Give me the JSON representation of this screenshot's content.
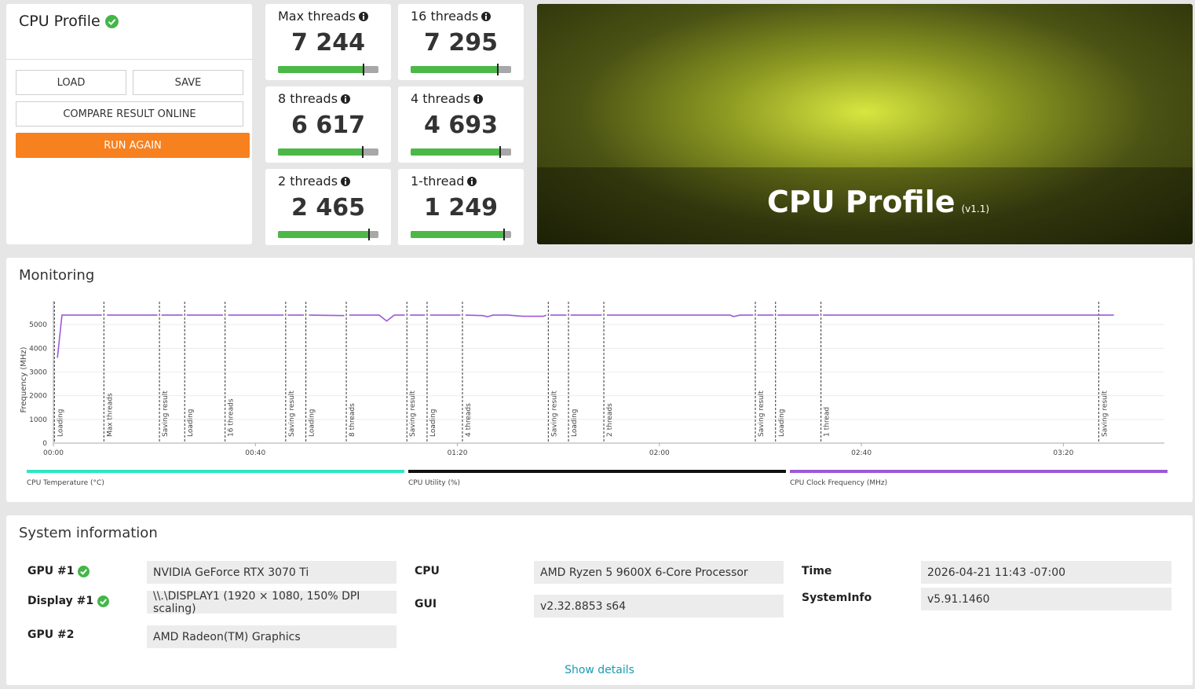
{
  "header": {
    "title": "CPU Profile",
    "buttons": [
      "LOAD",
      "SAVE",
      "COMPARE RESULT ONLINE",
      "RUN AGAIN"
    ]
  },
  "scores": [
    {
      "label": "Max threads",
      "score": "7 244"
    },
    {
      "label": "16 threads",
      "score": "7 295"
    },
    {
      "label": "8 threads",
      "score": "6 617"
    },
    {
      "label": "4 threads",
      "score": "4 693"
    },
    {
      "label": "2 threads",
      "score": "2 465"
    },
    {
      "label": "1-thread",
      "score": "1 249"
    }
  ],
  "banner": {
    "title": "CPU Profile",
    "version": "(v1.1)"
  },
  "monitoring": {
    "title": "Monitoring",
    "chart_data": {
      "type": "line",
      "ylabel": "Frequency (MHz)",
      "xlim": [
        0,
        220
      ],
      "xticks": [
        {
          "value": 0,
          "label": "00:00"
        },
        {
          "value": 40,
          "label": "00:40"
        },
        {
          "value": 80,
          "label": "01:20"
        },
        {
          "value": 120,
          "label": "02:00"
        },
        {
          "value": 160,
          "label": "02:40"
        },
        {
          "value": 200,
          "label": "03:20"
        }
      ],
      "ylim": [
        0,
        6000
      ],
      "yticks": [
        0,
        1000,
        2000,
        3000,
        4000,
        5000
      ],
      "grid": true,
      "x": [
        0.8,
        1.7,
        9.6,
        10.1,
        10.6,
        20.6,
        21,
        21.4,
        25.6,
        26,
        26.4,
        33.6,
        34.1,
        34.6,
        45.6,
        46,
        46.4,
        49.6,
        50.1,
        50.6,
        57.6,
        58.1,
        58.6,
        64.5,
        66,
        67.5,
        69.6,
        70.1,
        70.6,
        73.6,
        74.1,
        74.6,
        80.6,
        81.1,
        81.6,
        85,
        86,
        87,
        90,
        93,
        97,
        97.6,
        98,
        98.4,
        101.6,
        102,
        102.4,
        108.6,
        109.1,
        109.6,
        134,
        134.7,
        136,
        138.6,
        139,
        139.4,
        142.6,
        143,
        143.4,
        151.6,
        152,
        152.4,
        210
      ],
      "series": [
        {
          "color": "#9b59d6",
          "values": [
            3600,
            5400,
            5400,
            null,
            5400,
            5400,
            null,
            5400,
            5400,
            null,
            5400,
            5400,
            null,
            5400,
            5400,
            null,
            5400,
            5400,
            null,
            5400,
            5380,
            null,
            5400,
            5400,
            5150,
            5400,
            5400,
            null,
            5400,
            5400,
            null,
            5400,
            5400,
            null,
            5400,
            5380,
            5330,
            5400,
            5400,
            5350,
            5350,
            5400,
            null,
            5400,
            5400,
            null,
            5400,
            5400,
            null,
            5400,
            5400,
            5340,
            5400,
            5400,
            null,
            5400,
            5400,
            null,
            5400,
            5400,
            null,
            5400,
            5400
          ]
        }
      ],
      "markers": [
        {
          "x": 0.2,
          "label": "Loading"
        },
        {
          "x": 10,
          "label": "Max threads"
        },
        {
          "x": 21,
          "label": "Saving result"
        },
        {
          "x": 26,
          "label": "Loading"
        },
        {
          "x": 34,
          "label": "16 threads"
        },
        {
          "x": 46,
          "label": "Saving result"
        },
        {
          "x": 50,
          "label": "Loading"
        },
        {
          "x": 58,
          "label": "8 threads"
        },
        {
          "x": 70,
          "label": "Saving result"
        },
        {
          "x": 74,
          "label": "Loading"
        },
        {
          "x": 81,
          "label": "4 threads"
        },
        {
          "x": 98,
          "label": "Saving result"
        },
        {
          "x": 102,
          "label": "Loading"
        },
        {
          "x": 109,
          "label": "2 threads"
        },
        {
          "x": 139,
          "label": "Saving result"
        },
        {
          "x": 143,
          "label": "Loading"
        },
        {
          "x": 152,
          "label": "1 thread"
        },
        {
          "x": 207,
          "label": "Saving result"
        }
      ],
      "legend": [
        {
          "name": "CPU Temperature (°C)",
          "color": "#2de6c2"
        },
        {
          "name": "CPU Utility (%)",
          "color": "#111111"
        },
        {
          "name": "CPU Clock Frequency (MHz)",
          "color": "#9b59d6"
        }
      ]
    }
  },
  "system_information": {
    "title": "System information",
    "items": [
      {
        "label": "GPU #1",
        "value": "NVIDIA GeForce RTX 3070 Ti",
        "verified": true
      },
      {
        "label": "Display #1",
        "value": "\\\\.\\DISPLAY1 (1920 × 1080, 150% DPI scaling)",
        "verified": true
      },
      {
        "label": "GPU #2",
        "value": "AMD Radeon(TM) Graphics",
        "verified": false
      },
      {
        "label": "CPU",
        "value": "AMD Ryzen 5 9600X 6-Core Processor",
        "verified": false
      },
      {
        "label": "GUI",
        "value": "v2.32.8853 s64",
        "verified": false
      },
      {
        "label": "Time",
        "value": "2026-04-21 11:43 -07:00",
        "verified": false
      },
      {
        "label": "SystemInfo",
        "value": "v5.91.1460",
        "verified": false
      }
    ],
    "link": "Show details"
  }
}
